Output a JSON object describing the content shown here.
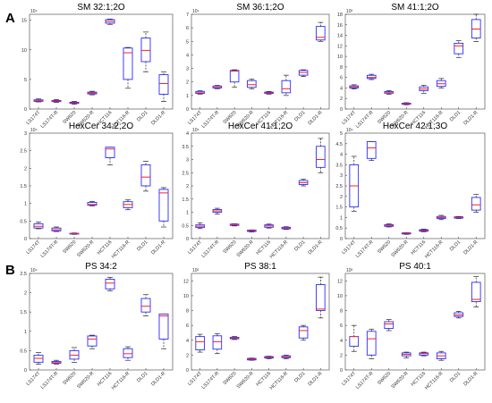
{
  "panel_labels": [
    "A",
    "B"
  ],
  "chart_data": [
    {
      "type": "box",
      "title": "SM 32:1;2O",
      "panel": "A",
      "scale": "10⁴",
      "ylim": [
        0,
        16
      ],
      "yticks": [
        0,
        5,
        10,
        15
      ],
      "yticklabels": [
        "0",
        "5",
        "10",
        "15"
      ],
      "categories": [
        "LS174T",
        "LS174T-R",
        "SW620",
        "SW620-R",
        "HCT116",
        "HCT116-R",
        "DLD1",
        "DLD1-R"
      ],
      "boxes": [
        {
          "min": 1.2,
          "q1": 1.3,
          "median": 1.45,
          "q3": 1.55,
          "max": 1.7
        },
        {
          "min": 1.1,
          "q1": 1.25,
          "median": 1.35,
          "q3": 1.45,
          "max": 1.6
        },
        {
          "min": 0.8,
          "q1": 0.95,
          "median": 1.05,
          "q3": 1.15,
          "max": 1.3
        },
        {
          "min": 2.4,
          "q1": 2.55,
          "median": 2.7,
          "q3": 2.85,
          "max": 3.0
        },
        {
          "min": 14.3,
          "q1": 14.5,
          "median": 14.8,
          "q3": 15.1,
          "max": 15.2
        },
        {
          "min": 3.5,
          "q1": 5.0,
          "median": 9.5,
          "q3": 10.3,
          "max": 10.4
        },
        {
          "min": 6.3,
          "q1": 8.0,
          "median": 9.9,
          "q3": 12.0,
          "max": 13.0
        },
        {
          "min": 1.3,
          "q1": 2.5,
          "median": 4.3,
          "q3": 5.8,
          "max": 6.3
        }
      ]
    },
    {
      "type": "box",
      "title": "SM 36:1;2O",
      "panel": "A",
      "scale": "10⁴",
      "ylim": [
        0,
        7
      ],
      "yticks": [
        0,
        1,
        2,
        3,
        4,
        5,
        6,
        7
      ],
      "yticklabels": [
        "0",
        "1",
        "2",
        "3",
        "4",
        "5",
        "6",
        "7"
      ],
      "categories": [
        "LS174T",
        "LS174T-R",
        "SW620",
        "SW620-R",
        "HCT116",
        "HCT116-R",
        "DLD1",
        "DLD1-R"
      ],
      "boxes": [
        {
          "min": 1.1,
          "q1": 1.15,
          "median": 1.2,
          "q3": 1.3,
          "max": 1.35
        },
        {
          "min": 1.5,
          "q1": 1.55,
          "median": 1.6,
          "q3": 1.7,
          "max": 1.75
        },
        {
          "min": 1.6,
          "q1": 2.0,
          "median": 2.8,
          "q3": 2.85,
          "max": 2.9
        },
        {
          "min": 1.5,
          "q1": 1.6,
          "median": 1.8,
          "q3": 2.1,
          "max": 2.2
        },
        {
          "min": 1.1,
          "q1": 1.15,
          "median": 1.2,
          "q3": 1.25,
          "max": 1.3
        },
        {
          "min": 1.0,
          "q1": 1.2,
          "median": 1.5,
          "q3": 2.1,
          "max": 2.5
        },
        {
          "min": 2.4,
          "q1": 2.5,
          "median": 2.7,
          "q3": 2.85,
          "max": 2.9
        },
        {
          "min": 5.0,
          "q1": 5.1,
          "median": 5.3,
          "q3": 6.1,
          "max": 6.4
        }
      ]
    },
    {
      "type": "box",
      "title": "SM 41:1;2O",
      "panel": "A",
      "scale": "10³",
      "ylim": [
        0,
        18
      ],
      "yticks": [
        0,
        2,
        4,
        6,
        8,
        10,
        12,
        14,
        16,
        18
      ],
      "yticklabels": [
        "0",
        "2",
        "4",
        "6",
        "8",
        "10",
        "12",
        "14",
        "16",
        "18"
      ],
      "categories": [
        "LS174T",
        "LS174T-R",
        "SW620",
        "SW620-R",
        "HCT116",
        "HCT116-R",
        "DLD1",
        "DLD1-R"
      ],
      "boxes": [
        {
          "min": 3.8,
          "q1": 4.0,
          "median": 4.2,
          "q3": 4.4,
          "max": 4.6
        },
        {
          "min": 5.6,
          "q1": 5.8,
          "median": 6.0,
          "q3": 6.4,
          "max": 6.6
        },
        {
          "min": 2.8,
          "q1": 3.0,
          "median": 3.1,
          "q3": 3.3,
          "max": 3.5
        },
        {
          "min": 0.8,
          "q1": 0.9,
          "median": 1.0,
          "q3": 1.1,
          "max": 1.2
        },
        {
          "min": 3.0,
          "q1": 3.5,
          "median": 3.8,
          "q3": 4.2,
          "max": 4.5
        },
        {
          "min": 4.0,
          "q1": 4.3,
          "median": 4.8,
          "q3": 5.4,
          "max": 5.8
        },
        {
          "min": 9.8,
          "q1": 10.5,
          "median": 12.0,
          "q3": 12.5,
          "max": 13.0
        },
        {
          "min": 12.8,
          "q1": 13.5,
          "median": 15.2,
          "q3": 17.0,
          "max": 18.0
        }
      ]
    },
    {
      "type": "box",
      "title": "HexCer 34:2;2O",
      "panel": "A",
      "scale": "10⁴",
      "ylim": [
        0,
        3
      ],
      "yticks": [
        0,
        0.5,
        1,
        1.5,
        2,
        2.5,
        3
      ],
      "yticklabels": [
        "0",
        "0.5",
        "1",
        "1.5",
        "2",
        "2.5",
        "3"
      ],
      "categories": [
        "LS174T",
        "LS174T-R",
        "SW620",
        "SW620-R",
        "HCT116",
        "HCT116-R",
        "DLD1",
        "DLD1-R"
      ],
      "boxes": [
        {
          "min": 0.28,
          "q1": 0.3,
          "median": 0.35,
          "q3": 0.42,
          "max": 0.47
        },
        {
          "min": 0.2,
          "q1": 0.22,
          "median": 0.25,
          "q3": 0.3,
          "max": 0.33
        },
        {
          "min": 0.12,
          "q1": 0.13,
          "median": 0.14,
          "q3": 0.15,
          "max": 0.16
        },
        {
          "min": 0.93,
          "q1": 0.95,
          "median": 0.97,
          "q3": 1.03,
          "max": 1.06
        },
        {
          "min": 2.1,
          "q1": 2.3,
          "median": 2.55,
          "q3": 2.6,
          "max": 2.6
        },
        {
          "min": 0.82,
          "q1": 0.88,
          "median": 0.97,
          "q3": 1.05,
          "max": 1.1
        },
        {
          "min": 1.35,
          "q1": 1.5,
          "median": 1.75,
          "q3": 2.1,
          "max": 2.2
        },
        {
          "min": 0.33,
          "q1": 0.5,
          "median": 1.3,
          "q3": 1.4,
          "max": 1.45
        }
      ]
    },
    {
      "type": "box",
      "title": "HexCer 41:1;2O",
      "panel": "A",
      "scale": "10⁵",
      "ylim": [
        0,
        4
      ],
      "yticks": [
        0,
        0.5,
        1,
        1.5,
        2,
        2.5,
        3,
        3.5,
        4
      ],
      "yticklabels": [
        "0",
        "0.5",
        "1",
        "1.5",
        "2",
        "2.5",
        "3",
        "3.5",
        "4"
      ],
      "categories": [
        "LS174T",
        "LS174T-R",
        "SW620",
        "SW620-R",
        "HCT116",
        "HCT116-R",
        "DLD1",
        "DLD1-R"
      ],
      "boxes": [
        {
          "min": 0.38,
          "q1": 0.42,
          "median": 0.47,
          "q3": 0.52,
          "max": 0.6
        },
        {
          "min": 0.93,
          "q1": 1.0,
          "median": 1.05,
          "q3": 1.1,
          "max": 1.15
        },
        {
          "min": 0.48,
          "q1": 0.5,
          "median": 0.53,
          "q3": 0.55,
          "max": 0.56
        },
        {
          "min": 0.25,
          "q1": 0.27,
          "median": 0.3,
          "q3": 0.32,
          "max": 0.33
        },
        {
          "min": 0.4,
          "q1": 0.43,
          "median": 0.48,
          "q3": 0.52,
          "max": 0.55
        },
        {
          "min": 0.35,
          "q1": 0.37,
          "median": 0.4,
          "q3": 0.43,
          "max": 0.45
        },
        {
          "min": 2.0,
          "q1": 2.05,
          "median": 2.12,
          "q3": 2.2,
          "max": 2.25
        },
        {
          "min": 2.5,
          "q1": 2.7,
          "median": 3.0,
          "q3": 3.5,
          "max": 3.8
        }
      ]
    },
    {
      "type": "box",
      "title": "HexCer 42:1;3O",
      "panel": "A",
      "scale": "10⁴",
      "ylim": [
        0,
        5
      ],
      "yticks": [
        0,
        0.5,
        1,
        1.5,
        2,
        2.5,
        3,
        3.5,
        4,
        4.5,
        5
      ],
      "yticklabels": [
        "0",
        "0.5",
        "1",
        "1.5",
        "2",
        "2.5",
        "3",
        "3.5",
        "4",
        "4.5",
        "5"
      ],
      "categories": [
        "LS174T",
        "LS174T-R",
        "SW620",
        "SW620-R",
        "HCT116",
        "HCT116-R",
        "DLD1",
        "DLD1-R"
      ],
      "boxes": [
        {
          "min": 1.3,
          "q1": 1.5,
          "median": 2.5,
          "q3": 3.5,
          "max": 3.9
        },
        {
          "min": 3.7,
          "q1": 3.8,
          "median": 4.3,
          "q3": 4.6,
          "max": 4.6
        },
        {
          "min": 0.55,
          "q1": 0.58,
          "median": 0.62,
          "q3": 0.66,
          "max": 0.7
        },
        {
          "min": 0.2,
          "q1": 0.22,
          "median": 0.25,
          "q3": 0.27,
          "max": 0.28
        },
        {
          "min": 0.32,
          "q1": 0.35,
          "median": 0.38,
          "q3": 0.42,
          "max": 0.45
        },
        {
          "min": 0.9,
          "q1": 0.95,
          "median": 1.0,
          "q3": 1.05,
          "max": 1.1
        },
        {
          "min": 0.95,
          "q1": 0.97,
          "median": 1.0,
          "q3": 1.03,
          "max": 1.05
        },
        {
          "min": 1.25,
          "q1": 1.35,
          "median": 1.6,
          "q3": 1.95,
          "max": 2.1
        }
      ]
    },
    {
      "type": "box",
      "title": "PS 34:2",
      "panel": "B",
      "scale": "10⁴",
      "ylim": [
        0,
        2.5
      ],
      "yticks": [
        0,
        0.5,
        1,
        1.5,
        2,
        2.5
      ],
      "yticklabels": [
        "0",
        "0.5",
        "1",
        "1.5",
        "2",
        "2.5"
      ],
      "categories": [
        "LS174T",
        "LS174T-R",
        "SW620",
        "SW620-R",
        "HCT116",
        "HCT116-R",
        "DLD1",
        "DLD1-R"
      ],
      "boxes": [
        {
          "min": 0.15,
          "q1": 0.2,
          "median": 0.3,
          "q3": 0.38,
          "max": 0.45
        },
        {
          "min": 0.15,
          "q1": 0.17,
          "median": 0.19,
          "q3": 0.22,
          "max": 0.25
        },
        {
          "min": 0.2,
          "q1": 0.28,
          "median": 0.38,
          "q3": 0.5,
          "max": 0.58
        },
        {
          "min": 0.55,
          "q1": 0.62,
          "median": 0.8,
          "q3": 0.88,
          "max": 0.9
        },
        {
          "min": 2.05,
          "q1": 2.1,
          "median": 2.25,
          "q3": 2.35,
          "max": 2.4
        },
        {
          "min": 0.25,
          "q1": 0.32,
          "median": 0.42,
          "q3": 0.55,
          "max": 0.6
        },
        {
          "min": 1.4,
          "q1": 1.5,
          "median": 1.65,
          "q3": 1.85,
          "max": 1.95
        },
        {
          "min": 0.55,
          "q1": 0.8,
          "median": 1.4,
          "q3": 1.45,
          "max": 1.45
        }
      ]
    },
    {
      "type": "box",
      "title": "PS 38:1",
      "panel": "B",
      "scale": "10³",
      "ylim": [
        0,
        13
      ],
      "yticks": [
        0,
        2,
        4,
        6,
        8,
        10,
        12
      ],
      "yticklabels": [
        "0",
        "2",
        "4",
        "6",
        "8",
        "10",
        "12"
      ],
      "categories": [
        "LS174T",
        "LS174T-R",
        "SW620",
        "SW620-R",
        "HCT116",
        "HCT116-R",
        "DLD1",
        "DLD1-R"
      ],
      "boxes": [
        {
          "min": 2.4,
          "q1": 2.7,
          "median": 3.8,
          "q3": 4.5,
          "max": 4.8
        },
        {
          "min": 2.2,
          "q1": 2.8,
          "median": 3.8,
          "q3": 4.6,
          "max": 4.9
        },
        {
          "min": 4.1,
          "q1": 4.2,
          "median": 4.3,
          "q3": 4.4,
          "max": 4.5
        },
        {
          "min": 1.3,
          "q1": 1.35,
          "median": 1.45,
          "q3": 1.55,
          "max": 1.6
        },
        {
          "min": 1.5,
          "q1": 1.6,
          "median": 1.7,
          "q3": 1.8,
          "max": 1.85
        },
        {
          "min": 1.5,
          "q1": 1.65,
          "median": 1.75,
          "q3": 1.9,
          "max": 2.0
        },
        {
          "min": 4.0,
          "q1": 4.3,
          "median": 5.3,
          "q3": 5.8,
          "max": 6.0
        },
        {
          "min": 7.0,
          "q1": 8.0,
          "median": 8.2,
          "q3": 11.5,
          "max": 12.5
        }
      ]
    },
    {
      "type": "box",
      "title": "PS 40:1",
      "panel": "B",
      "scale": "10³",
      "ylim": [
        0,
        13
      ],
      "yticks": [
        0,
        2,
        4,
        6,
        8,
        10,
        12
      ],
      "yticklabels": [
        "0",
        "2",
        "4",
        "6",
        "8",
        "10",
        "12"
      ],
      "categories": [
        "LS174T",
        "LS174T-R",
        "SW620",
        "SW620-R",
        "HCT116",
        "HCT116-R",
        "DLD1",
        "DLD1-R"
      ],
      "boxes": [
        {
          "min": 2.5,
          "q1": 3.2,
          "median": 4.5,
          "q3": 4.5,
          "max": 6.0
        },
        {
          "min": 1.5,
          "q1": 2.0,
          "median": 4.2,
          "q3": 5.2,
          "max": 5.5
        },
        {
          "min": 5.3,
          "q1": 5.6,
          "median": 6.2,
          "q3": 6.5,
          "max": 6.8
        },
        {
          "min": 1.6,
          "q1": 1.9,
          "median": 2.1,
          "q3": 2.3,
          "max": 2.4
        },
        {
          "min": 1.9,
          "q1": 2.0,
          "median": 2.2,
          "q3": 2.3,
          "max": 2.4
        },
        {
          "min": 1.3,
          "q1": 1.5,
          "median": 1.9,
          "q3": 2.3,
          "max": 2.5
        },
        {
          "min": 7.0,
          "q1": 7.2,
          "median": 7.4,
          "q3": 7.7,
          "max": 7.9
        },
        {
          "min": 8.5,
          "q1": 9.2,
          "median": 9.5,
          "q3": 11.8,
          "max": 12.6
        }
      ]
    }
  ]
}
